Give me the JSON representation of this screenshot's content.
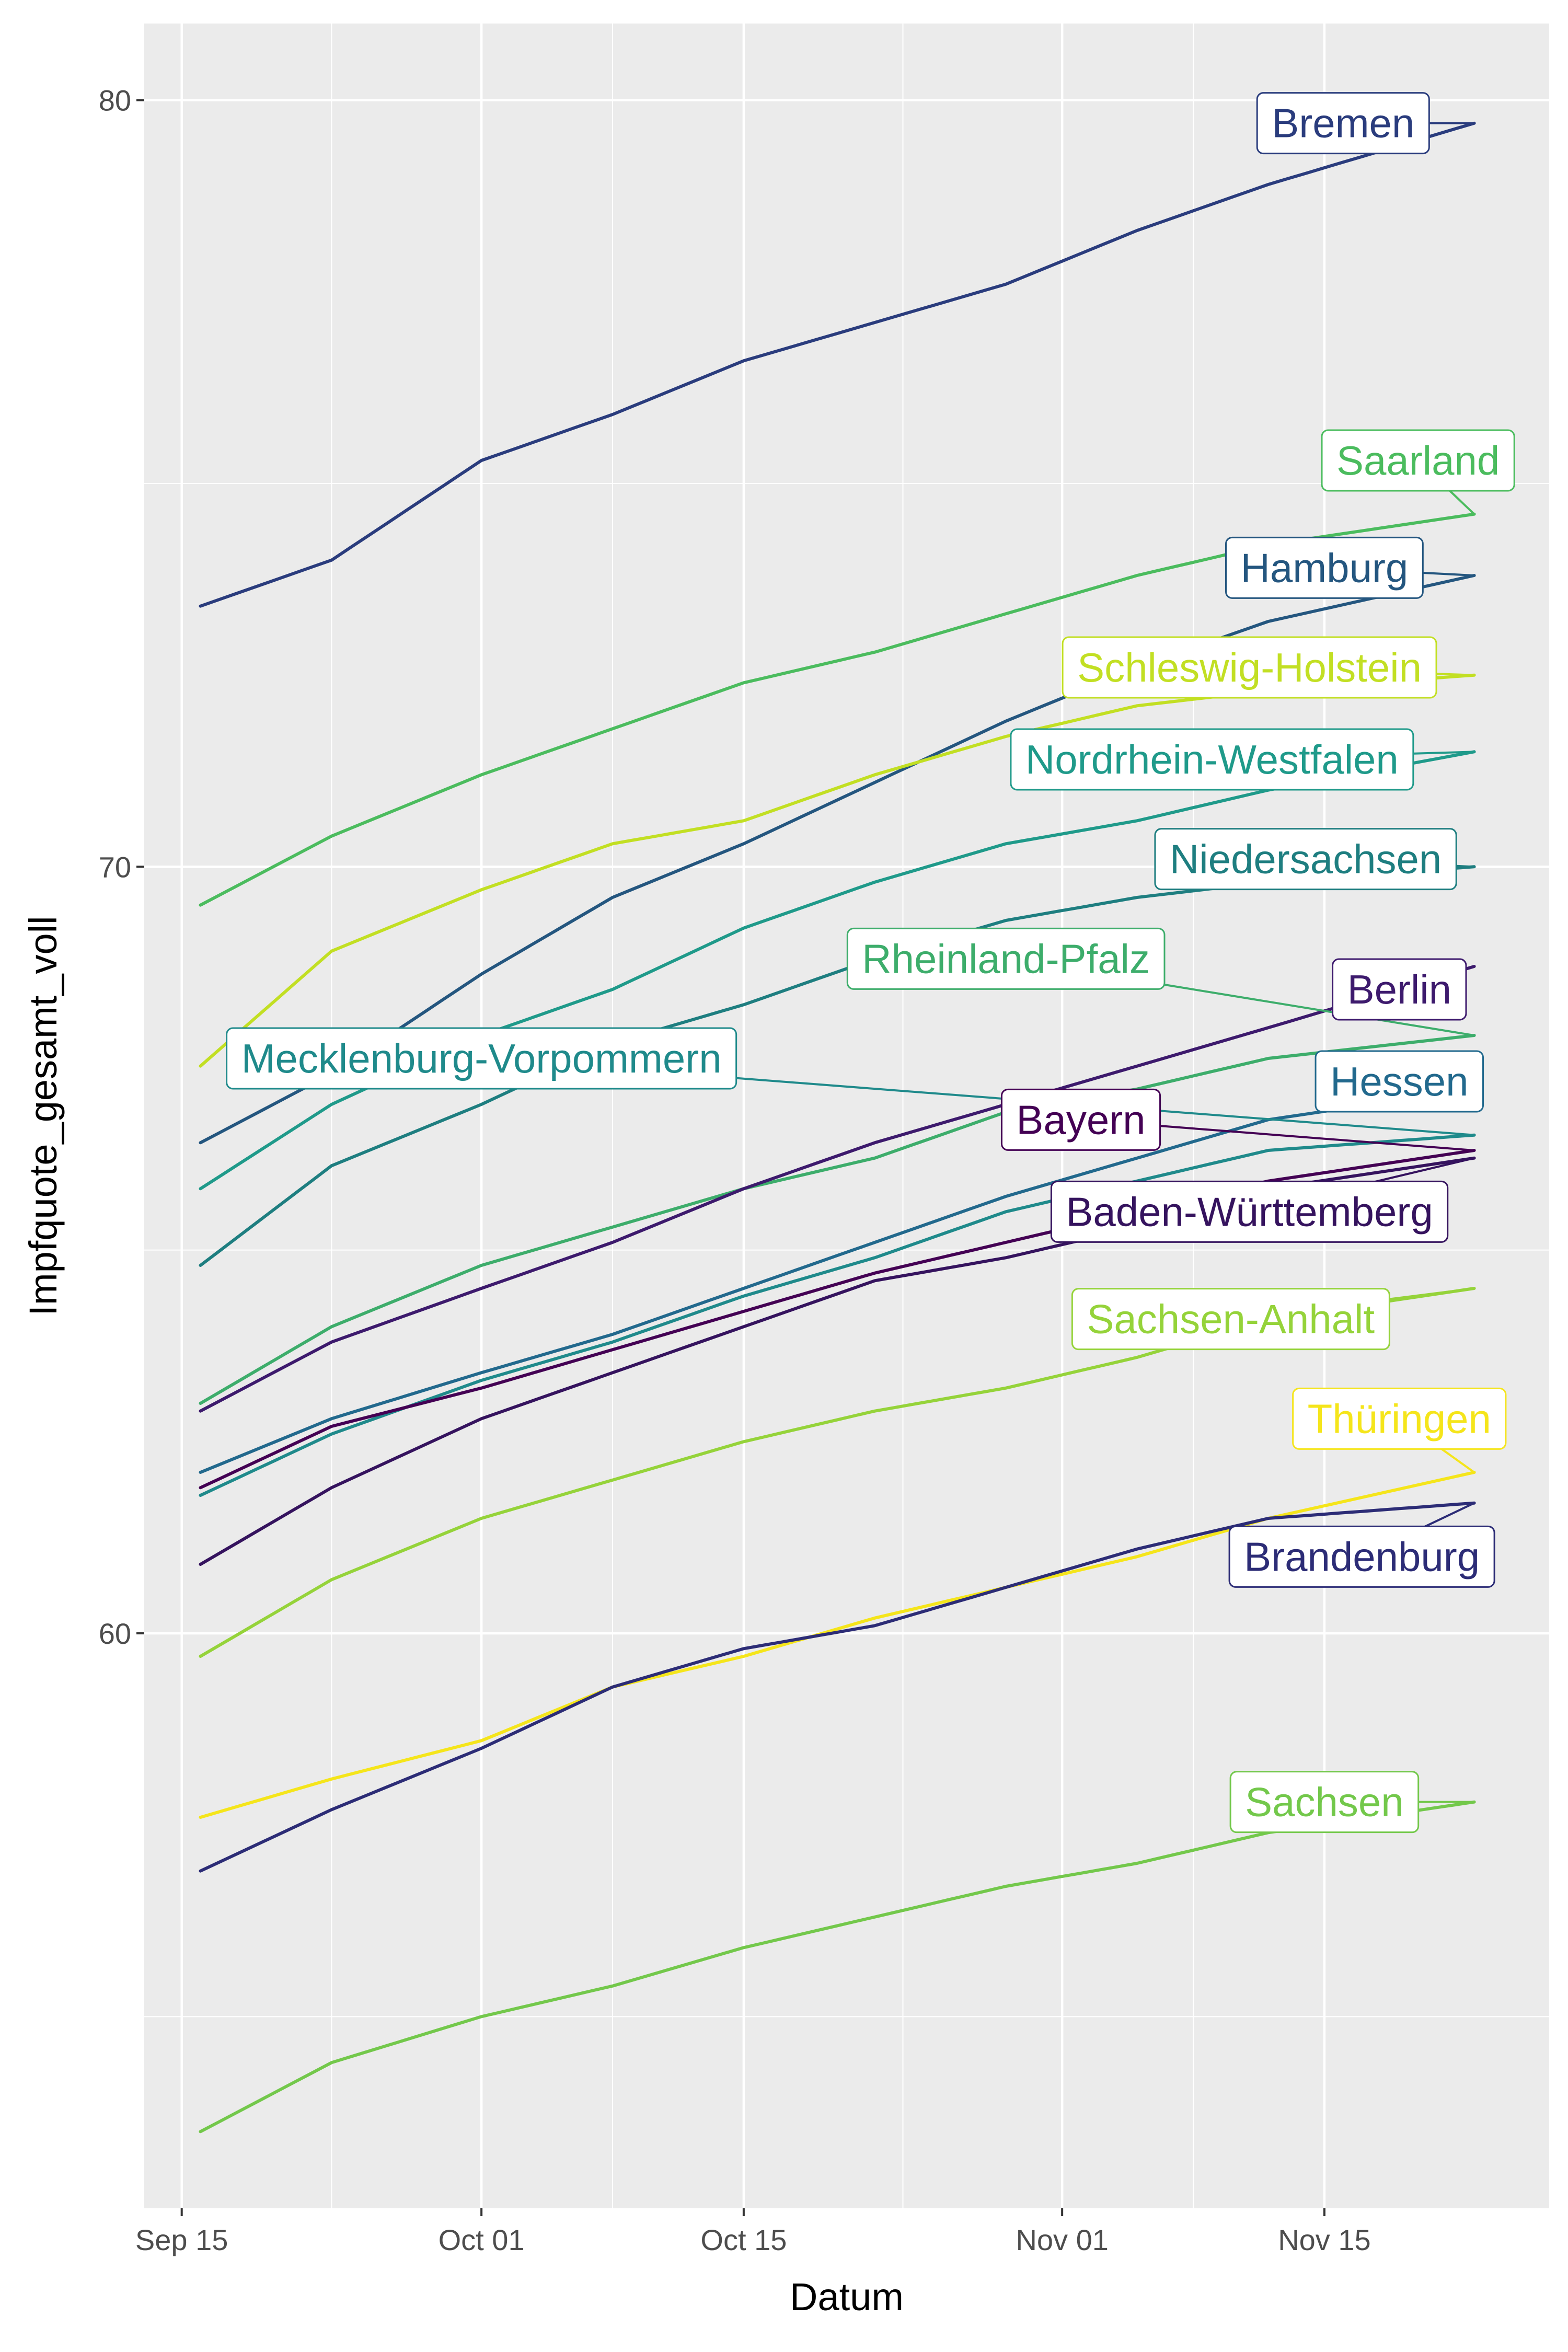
{
  "chart_data": {
    "type": "line",
    "xlabel": "Datum",
    "ylabel": "Impfquote_gesamt_voll",
    "x_range": [
      "2021-09-13",
      "2021-11-27"
    ],
    "ylim": [
      52.5,
      81.0
    ],
    "x_ticks": [
      {
        "date": "2021-09-15",
        "label": "Sep 15"
      },
      {
        "date": "2021-10-01",
        "label": "Oct 01"
      },
      {
        "date": "2021-10-15",
        "label": "Oct 15"
      },
      {
        "date": "2021-11-01",
        "label": "Nov 01"
      },
      {
        "date": "2021-11-15",
        "label": "Nov 15"
      }
    ],
    "y_ticks": [
      {
        "value": 60,
        "label": "60"
      },
      {
        "value": 70,
        "label": "70"
      },
      {
        "value": 80,
        "label": "80"
      }
    ],
    "grid": true,
    "legend": "none",
    "panel_background": "#ebebeb",
    "series": [
      {
        "name": "Bremen",
        "color": "#2a3c7d",
        "label_date": "2021-11-16",
        "label_y": 79.7,
        "label_style": "filled",
        "points": [
          [
            "2021-09-16",
            73.4
          ],
          [
            "2021-09-23",
            74.0
          ],
          [
            "2021-10-01",
            75.3
          ],
          [
            "2021-10-08",
            75.9
          ],
          [
            "2021-10-15",
            76.6
          ],
          [
            "2021-10-22",
            77.1
          ],
          [
            "2021-10-29",
            77.6
          ],
          [
            "2021-11-05",
            78.3
          ],
          [
            "2021-11-12",
            78.9
          ],
          [
            "2021-11-23",
            79.7
          ]
        ]
      },
      {
        "name": "Saarland",
        "color": "#4bbc5e",
        "label_date": "2021-11-20",
        "label_y": 75.3,
        "label_style": "outline",
        "points": [
          [
            "2021-09-16",
            69.5
          ],
          [
            "2021-09-23",
            70.4
          ],
          [
            "2021-10-01",
            71.2
          ],
          [
            "2021-10-08",
            71.8
          ],
          [
            "2021-10-15",
            72.4
          ],
          [
            "2021-10-22",
            72.8
          ],
          [
            "2021-10-29",
            73.3
          ],
          [
            "2021-11-05",
            73.8
          ],
          [
            "2021-11-12",
            74.2
          ],
          [
            "2021-11-23",
            74.6
          ]
        ]
      },
      {
        "name": "Hamburg",
        "color": "#24567f",
        "label_date": "2021-11-15",
        "label_y": 73.9,
        "label_style": "filled",
        "points": [
          [
            "2021-09-16",
            66.4
          ],
          [
            "2021-09-23",
            67.3
          ],
          [
            "2021-10-01",
            68.6
          ],
          [
            "2021-10-08",
            69.6
          ],
          [
            "2021-10-15",
            70.3
          ],
          [
            "2021-10-22",
            71.1
          ],
          [
            "2021-10-29",
            71.9
          ],
          [
            "2021-11-05",
            72.6
          ],
          [
            "2021-11-12",
            73.2
          ],
          [
            "2021-11-23",
            73.8
          ]
        ]
      },
      {
        "name": "Schleswig-Holstein",
        "color": "#c2df23",
        "label_date": "2021-11-11",
        "label_y": 72.6,
        "label_style": "outline",
        "points": [
          [
            "2021-09-16",
            67.4
          ],
          [
            "2021-09-23",
            68.9
          ],
          [
            "2021-10-01",
            69.7
          ],
          [
            "2021-10-08",
            70.3
          ],
          [
            "2021-10-15",
            70.6
          ],
          [
            "2021-10-22",
            71.2
          ],
          [
            "2021-10-29",
            71.7
          ],
          [
            "2021-11-05",
            72.1
          ],
          [
            "2021-11-12",
            72.3
          ],
          [
            "2021-11-23",
            72.5
          ]
        ]
      },
      {
        "name": "Nordrhein-Westfalen",
        "color": "#1f9a8a",
        "label_date": "2021-11-09",
        "label_y": 71.4,
        "label_style": "filled",
        "points": [
          [
            "2021-09-16",
            65.8
          ],
          [
            "2021-09-23",
            66.9
          ],
          [
            "2021-10-01",
            67.8
          ],
          [
            "2021-10-08",
            68.4
          ],
          [
            "2021-10-15",
            69.2
          ],
          [
            "2021-10-22",
            69.8
          ],
          [
            "2021-10-29",
            70.3
          ],
          [
            "2021-11-05",
            70.6
          ],
          [
            "2021-11-12",
            71.0
          ],
          [
            "2021-11-23",
            71.5
          ]
        ]
      },
      {
        "name": "Niedersachsen",
        "color": "#1e7e80",
        "label_date": "2021-11-14",
        "label_y": 70.1,
        "label_style": "filled",
        "points": [
          [
            "2021-09-16",
            64.8
          ],
          [
            "2021-09-23",
            66.1
          ],
          [
            "2021-10-01",
            66.9
          ],
          [
            "2021-10-08",
            67.7
          ],
          [
            "2021-10-15",
            68.2
          ],
          [
            "2021-10-22",
            68.8
          ],
          [
            "2021-10-29",
            69.3
          ],
          [
            "2021-11-05",
            69.6
          ],
          [
            "2021-11-12",
            69.8
          ],
          [
            "2021-11-23",
            70.0
          ]
        ]
      },
      {
        "name": "Rheinland-Pfalz",
        "color": "#3dad6b",
        "label_date": "2021-10-29",
        "label_y": 68.8,
        "label_style": "outline",
        "points": [
          [
            "2021-09-16",
            63.0
          ],
          [
            "2021-09-23",
            64.0
          ],
          [
            "2021-10-01",
            64.8
          ],
          [
            "2021-10-08",
            65.3
          ],
          [
            "2021-10-15",
            65.8
          ],
          [
            "2021-10-22",
            66.2
          ],
          [
            "2021-10-29",
            66.8
          ],
          [
            "2021-11-05",
            67.1
          ],
          [
            "2021-11-12",
            67.5
          ],
          [
            "2021-11-23",
            67.8
          ]
        ]
      },
      {
        "name": "Berlin",
        "color": "#3d1a6d",
        "label_date": "2021-11-19",
        "label_y": 68.4,
        "label_style": "filled",
        "points": [
          [
            "2021-09-16",
            62.9
          ],
          [
            "2021-09-23",
            63.8
          ],
          [
            "2021-10-01",
            64.5
          ],
          [
            "2021-10-08",
            65.1
          ],
          [
            "2021-10-15",
            65.8
          ],
          [
            "2021-10-22",
            66.4
          ],
          [
            "2021-10-29",
            66.9
          ],
          [
            "2021-11-05",
            67.4
          ],
          [
            "2021-11-12",
            67.9
          ],
          [
            "2021-11-23",
            68.7
          ]
        ]
      },
      {
        "name": "Hessen",
        "color": "#22698d",
        "label_date": "2021-11-19",
        "label_y": 67.2,
        "label_style": "filled",
        "points": [
          [
            "2021-09-16",
            62.1
          ],
          [
            "2021-09-23",
            62.8
          ],
          [
            "2021-10-01",
            63.4
          ],
          [
            "2021-10-08",
            63.9
          ],
          [
            "2021-10-15",
            64.5
          ],
          [
            "2021-10-22",
            65.1
          ],
          [
            "2021-10-29",
            65.7
          ],
          [
            "2021-11-05",
            66.2
          ],
          [
            "2021-11-12",
            66.7
          ],
          [
            "2021-11-23",
            67.1
          ]
        ]
      },
      {
        "name": "Mecklenburg-Vorpommern",
        "color": "#1f8a8b",
        "label_date": "2021-10-01",
        "label_y": 67.5,
        "label_style": "outline",
        "points": [
          [
            "2021-09-16",
            61.8
          ],
          [
            "2021-09-23",
            62.6
          ],
          [
            "2021-10-01",
            63.3
          ],
          [
            "2021-10-08",
            63.8
          ],
          [
            "2021-10-15",
            64.4
          ],
          [
            "2021-10-22",
            64.9
          ],
          [
            "2021-10-29",
            65.5
          ],
          [
            "2021-11-05",
            65.9
          ],
          [
            "2021-11-12",
            66.3
          ],
          [
            "2021-11-23",
            66.5
          ]
        ]
      },
      {
        "name": "Bayern",
        "color": "#440154",
        "label_date": "2021-11-02",
        "label_y": 66.7,
        "label_style": "filled",
        "points": [
          [
            "2021-09-16",
            61.9
          ],
          [
            "2021-09-23",
            62.7
          ],
          [
            "2021-10-01",
            63.2
          ],
          [
            "2021-10-08",
            63.7
          ],
          [
            "2021-10-15",
            64.2
          ],
          [
            "2021-10-22",
            64.7
          ],
          [
            "2021-10-29",
            65.1
          ],
          [
            "2021-11-05",
            65.5
          ],
          [
            "2021-11-12",
            65.9
          ],
          [
            "2021-11-23",
            66.3
          ]
        ]
      },
      {
        "name": "Baden-Württemberg",
        "color": "#35135e",
        "label_date": "2021-11-11",
        "label_y": 65.5,
        "label_style": "filled",
        "points": [
          [
            "2021-09-16",
            60.9
          ],
          [
            "2021-09-23",
            61.9
          ],
          [
            "2021-10-01",
            62.8
          ],
          [
            "2021-10-08",
            63.4
          ],
          [
            "2021-10-15",
            64.0
          ],
          [
            "2021-10-22",
            64.6
          ],
          [
            "2021-10-29",
            64.9
          ],
          [
            "2021-11-05",
            65.3
          ],
          [
            "2021-11-12",
            65.8
          ],
          [
            "2021-11-23",
            66.2
          ]
        ]
      },
      {
        "name": "Sachsen-Anhalt",
        "color": "#95d33a",
        "label_date": "2021-11-10",
        "label_y": 64.1,
        "label_style": "outline",
        "points": [
          [
            "2021-09-16",
            59.7
          ],
          [
            "2021-09-23",
            60.7
          ],
          [
            "2021-10-01",
            61.5
          ],
          [
            "2021-10-08",
            62.0
          ],
          [
            "2021-10-15",
            62.5
          ],
          [
            "2021-10-22",
            62.9
          ],
          [
            "2021-10-29",
            63.2
          ],
          [
            "2021-11-05",
            63.6
          ],
          [
            "2021-11-12",
            64.1
          ],
          [
            "2021-11-23",
            64.5
          ]
        ]
      },
      {
        "name": "Thüringen",
        "color": "#f5e51b",
        "label_date": "2021-11-19",
        "label_y": 62.8,
        "label_style": "outline",
        "points": [
          [
            "2021-09-16",
            57.6
          ],
          [
            "2021-09-23",
            58.1
          ],
          [
            "2021-10-01",
            58.6
          ],
          [
            "2021-10-08",
            59.3
          ],
          [
            "2021-10-15",
            59.7
          ],
          [
            "2021-10-22",
            60.2
          ],
          [
            "2021-10-29",
            60.6
          ],
          [
            "2021-11-05",
            61.0
          ],
          [
            "2021-11-12",
            61.5
          ],
          [
            "2021-11-23",
            62.1
          ]
        ]
      },
      {
        "name": "Brandenburg",
        "color": "#2c2c76",
        "label_date": "2021-11-17",
        "label_y": 61.0,
        "label_style": "filled",
        "points": [
          [
            "2021-09-16",
            56.9
          ],
          [
            "2021-09-23",
            57.7
          ],
          [
            "2021-10-01",
            58.5
          ],
          [
            "2021-10-08",
            59.3
          ],
          [
            "2021-10-15",
            59.8
          ],
          [
            "2021-10-22",
            60.1
          ],
          [
            "2021-10-29",
            60.6
          ],
          [
            "2021-11-05",
            61.1
          ],
          [
            "2021-11-12",
            61.5
          ],
          [
            "2021-11-23",
            61.7
          ]
        ]
      },
      {
        "name": "Sachsen",
        "color": "#73c84b",
        "label_date": "2021-11-15",
        "label_y": 57.8,
        "label_style": "outline",
        "points": [
          [
            "2021-09-16",
            53.5
          ],
          [
            "2021-09-23",
            54.4
          ],
          [
            "2021-10-01",
            55.0
          ],
          [
            "2021-10-08",
            55.4
          ],
          [
            "2021-10-15",
            55.9
          ],
          [
            "2021-10-22",
            56.3
          ],
          [
            "2021-10-29",
            56.7
          ],
          [
            "2021-11-05",
            57.0
          ],
          [
            "2021-11-12",
            57.4
          ],
          [
            "2021-11-23",
            57.8
          ]
        ]
      }
    ]
  }
}
